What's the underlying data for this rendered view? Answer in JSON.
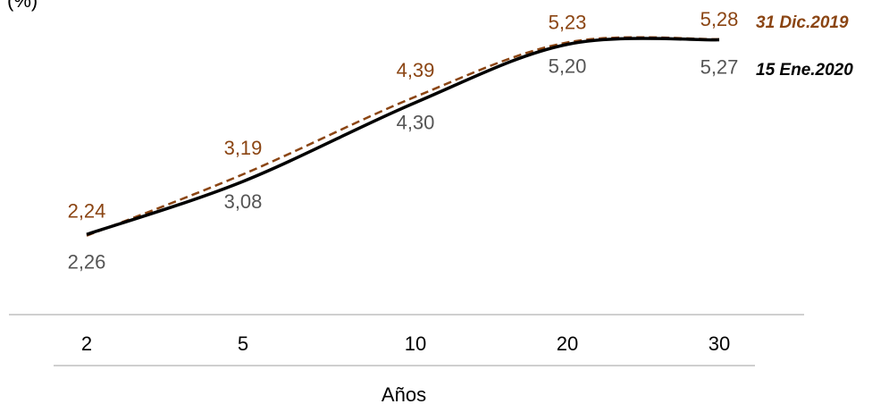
{
  "chart_data": {
    "type": "line",
    "ylabel": "(%)",
    "xlabel": "Años",
    "categories": [
      "2",
      "5",
      "10",
      "20",
      "30"
    ],
    "series": [
      {
        "name": "31 Dic.2019",
        "values": [
          2.24,
          3.19,
          4.39,
          5.23,
          5.28
        ],
        "labels": [
          "2,24",
          "3,19",
          "4,39",
          "5,23",
          "5,28"
        ],
        "color": "#8b4513",
        "style": "dashed"
      },
      {
        "name": "15 Ene.2020",
        "values": [
          2.26,
          3.08,
          4.3,
          5.2,
          5.27
        ],
        "labels": [
          "2,26",
          "3,08",
          "4,30",
          "5,20",
          "5,27"
        ],
        "color": "#000000",
        "style": "solid"
      }
    ],
    "grid": false,
    "legend": "right"
  }
}
